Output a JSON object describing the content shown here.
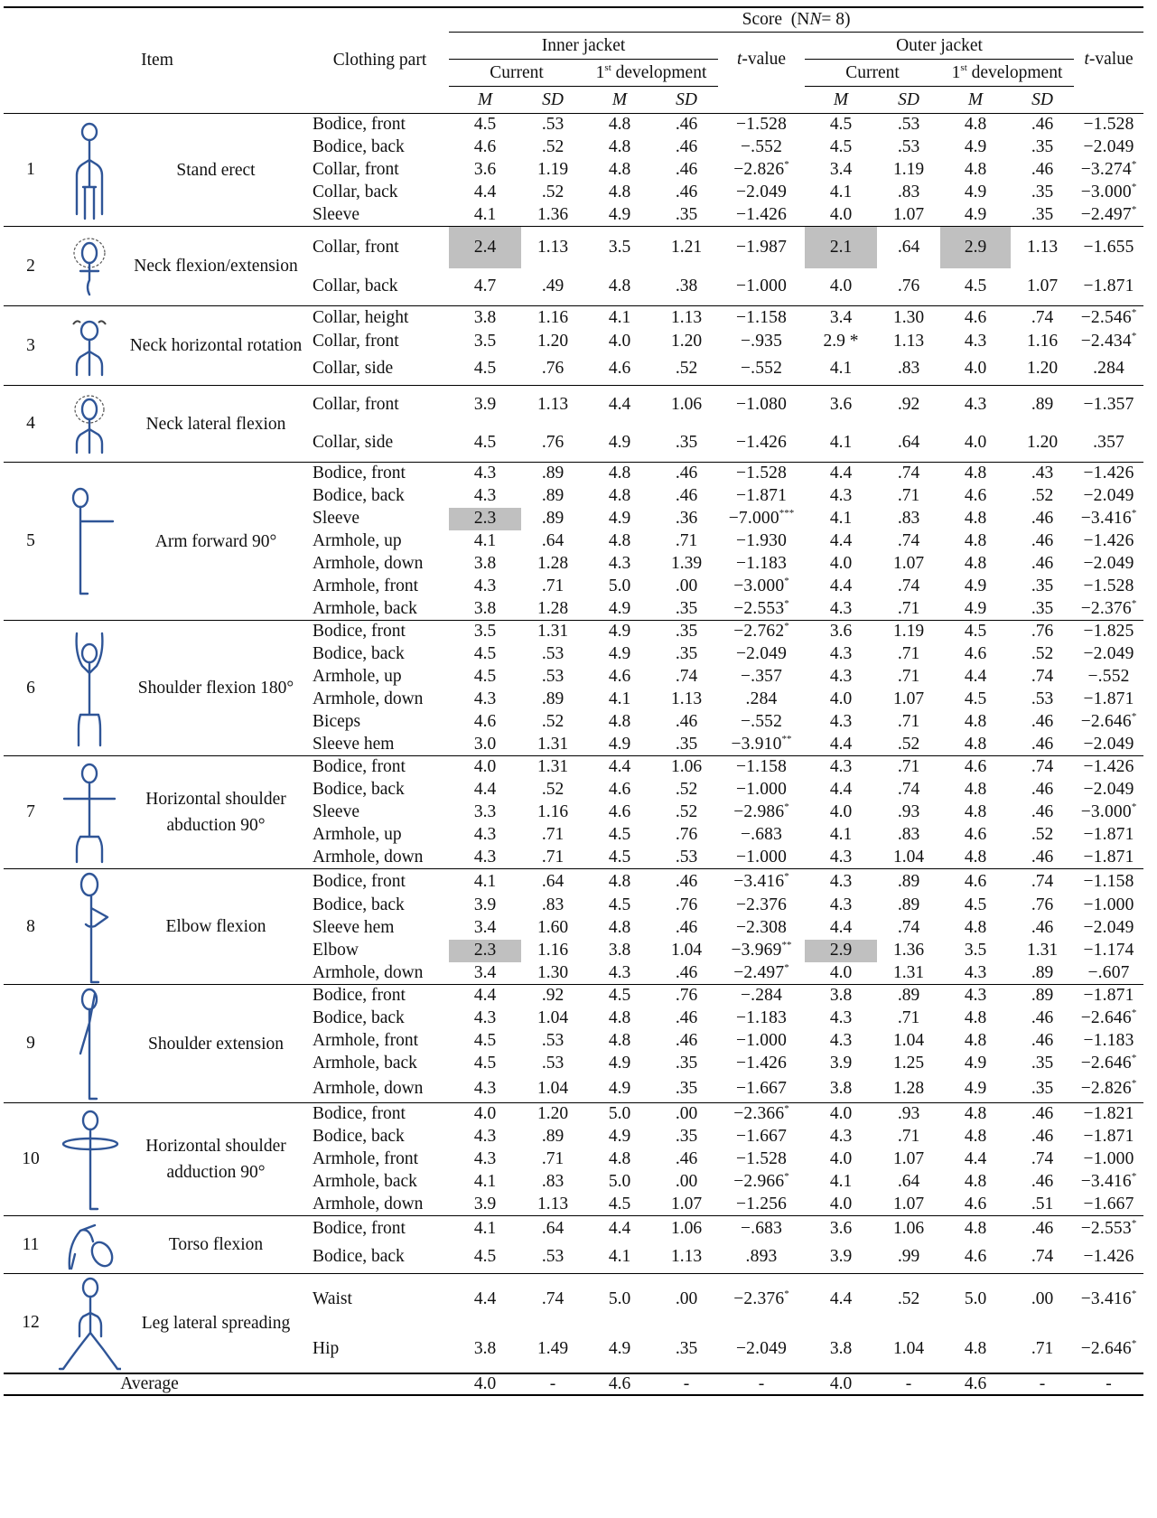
{
  "header": {
    "item": "Item",
    "clothing_part": "Clothing part",
    "score": "Score",
    "n_label": "(N",
    "n_value": "= 8)",
    "inner": "Inner jacket",
    "outer": "Outer jacket",
    "current": "Current",
    "development_ordinal": "1",
    "development_sup": "st",
    "development": " development",
    "tvalue_t": "t",
    "tvalue_rest": "-value",
    "m": "M",
    "sd": "SD"
  },
  "groups": [
    {
      "no": "1",
      "name": "Stand erect",
      "icon": "stand-erect-figure-icon",
      "rows": [
        {
          "part": "Bodice,  front",
          "c": [
            "4.5",
            ".53",
            "4.8",
            ".46",
            "−1.528",
            "",
            "4.5",
            ".53",
            "4.8",
            ".46",
            "−1.528",
            ""
          ]
        },
        {
          "part": "Bodice,  back",
          "c": [
            "4.6",
            ".52",
            "4.8",
            ".46",
            "−.552",
            "",
            "4.5",
            ".53",
            "4.9",
            ".35",
            "−2.049",
            ""
          ]
        },
        {
          "part": "Collar,  front",
          "c": [
            "3.6",
            "1.19",
            "4.8",
            ".46",
            "−2.826",
            "*",
            "3.4",
            "1.19",
            "4.8",
            ".46",
            "−3.274",
            "*"
          ]
        },
        {
          "part": "Collar,  back",
          "c": [
            "4.4",
            ".52",
            "4.8",
            ".46",
            "−2.049",
            "",
            "4.1",
            ".83",
            "4.9",
            ".35",
            "−3.000",
            "*"
          ]
        },
        {
          "part": "Sleeve",
          "c": [
            "4.1",
            "1.36",
            "4.9",
            ".35",
            "−1.426",
            "",
            "4.0",
            "1.07",
            "4.9",
            ".35",
            "−2.497",
            "*"
          ]
        }
      ]
    },
    {
      "no": "2",
      "name": "Neck flexion/extension",
      "icon": "neck-flexion-extension-figure-icon",
      "rows": [
        {
          "part": "Collar,  front",
          "c": [
            "2.4",
            "1.13",
            "3.5",
            "1.21",
            "−1.987",
            "",
            "2.1",
            ".64",
            "2.9",
            "1.13",
            "−1.655",
            ""
          ],
          "shade": [
            0,
            6,
            8
          ]
        },
        {
          "part": "Collar,  back",
          "c": [
            "4.7",
            ".49",
            "4.8",
            ".38",
            "−1.000",
            "",
            "4.0",
            ".76",
            "4.5",
            "1.07",
            "−1.871",
            ""
          ]
        }
      ]
    },
    {
      "no": "3",
      "name": "Neck horizontal rotation",
      "icon": "neck-horizontal-rotation-figure-icon",
      "rows": [
        {
          "part": "Collar,  height",
          "c": [
            "3.8",
            "1.16",
            "4.1",
            "1.13",
            "−1.158",
            "",
            "3.4",
            "1.30",
            "4.6",
            ".74",
            "−2.546",
            "*"
          ]
        },
        {
          "part": "Collar,  front",
          "c": [
            "3.5",
            "1.20",
            "4.0",
            "1.20",
            "−.935",
            "",
            "2.9 *",
            "1.13",
            "4.3",
            "1.16",
            "−2.434",
            "*"
          ]
        },
        {
          "part": "Collar,  side",
          "c": [
            "4.5",
            ".76",
            "4.6",
            ".52",
            "−.552",
            "",
            "4.1",
            ".83",
            "4.0",
            "1.20",
            ".284",
            ""
          ]
        }
      ]
    },
    {
      "no": "4",
      "name": "Neck lateral flexion",
      "icon": "neck-lateral-flexion-figure-icon",
      "rows": [
        {
          "part": "Collar,  front",
          "c": [
            "3.9",
            "1.13",
            "4.4",
            "1.06",
            "−1.080",
            "",
            "3.6",
            ".92",
            "4.3",
            ".89",
            "−1.357",
            ""
          ]
        },
        {
          "part": "Collar,  side",
          "c": [
            "4.5",
            ".76",
            "4.9",
            ".35",
            "−1.426",
            "",
            "4.1",
            ".64",
            "4.0",
            "1.20",
            ".357",
            ""
          ]
        }
      ]
    },
    {
      "no": "5",
      "name": "Arm forward 90°",
      "icon": "arm-forward-figure-icon",
      "rows": [
        {
          "part": "Bodice,  front",
          "c": [
            "4.3",
            ".89",
            "4.8",
            ".46",
            "−1.528",
            "",
            "4.4",
            ".74",
            "4.8",
            ".43",
            "−1.426",
            ""
          ]
        },
        {
          "part": "Bodice,  back",
          "c": [
            "4.3",
            ".89",
            "4.8",
            ".46",
            "−1.871",
            "",
            "4.3",
            ".71",
            "4.6",
            ".52",
            "−2.049",
            ""
          ]
        },
        {
          "part": "Sleeve",
          "c": [
            "2.3",
            ".89",
            "4.9",
            ".36",
            "−7.000",
            "***",
            "4.1",
            ".83",
            "4.8",
            ".46",
            "−3.416",
            "*"
          ],
          "shade": [
            0
          ]
        },
        {
          "part": "Armhole,  up",
          "c": [
            "4.1",
            ".64",
            "4.8",
            ".71",
            "−1.930",
            "",
            "4.4",
            ".74",
            "4.8",
            ".46",
            "−1.426",
            ""
          ]
        },
        {
          "part": "Armhole,  down",
          "c": [
            "3.8",
            "1.28",
            "4.3",
            "1.39",
            "−1.183",
            "",
            "4.0",
            "1.07",
            "4.8",
            ".46",
            "−2.049",
            ""
          ]
        },
        {
          "part": "Armhole,  front",
          "c": [
            "4.3",
            ".71",
            "5.0",
            ".00",
            "−3.000",
            "*",
            "4.4",
            ".74",
            "4.9",
            ".35",
            "−1.528",
            ""
          ]
        },
        {
          "part": "Armhole,  back",
          "c": [
            "3.8",
            "1.28",
            "4.9",
            ".35",
            "−2.553",
            "*",
            "4.3",
            ".71",
            "4.9",
            ".35",
            "−2.376",
            "*"
          ]
        }
      ]
    },
    {
      "no": "6",
      "name": "Shoulder flexion 180°",
      "icon": "shoulder-flexion-figure-icon",
      "rows": [
        {
          "part": "Bodice,  front",
          "c": [
            "3.5",
            "1.31",
            "4.9",
            ".35",
            "−2.762",
            "*",
            "3.6",
            "1.19",
            "4.5",
            ".76",
            "−1.825",
            ""
          ]
        },
        {
          "part": "Bodice,  back",
          "c": [
            "4.5",
            ".53",
            "4.9",
            ".35",
            "−2.049",
            "",
            "4.3",
            ".71",
            "4.6",
            ".52",
            "−2.049",
            ""
          ]
        },
        {
          "part": "Armhole,  up",
          "c": [
            "4.5",
            ".53",
            "4.6",
            ".74",
            "−.357",
            "",
            "4.3",
            ".71",
            "4.4",
            ".74",
            "−.552",
            ""
          ]
        },
        {
          "part": "Armhole,  down",
          "c": [
            "4.3",
            ".89",
            "4.1",
            "1.13",
            ".284",
            "",
            "4.0",
            "1.07",
            "4.5",
            ".53",
            "−1.871",
            ""
          ]
        },
        {
          "part": "Biceps",
          "c": [
            "4.6",
            ".52",
            "4.8",
            ".46",
            "−.552",
            "",
            "4.3",
            ".71",
            "4.8",
            ".46",
            "−2.646",
            "*"
          ]
        },
        {
          "part": "Sleeve  hem",
          "c": [
            "3.0",
            "1.31",
            "4.9",
            ".35",
            "−3.910",
            "**",
            "4.4",
            ".52",
            "4.8",
            ".46",
            "−2.049",
            ""
          ]
        }
      ]
    },
    {
      "no": "7",
      "name": "Horizontal shoulder abduction 90°",
      "icon": "horizontal-shoulder-abduction-figure-icon",
      "rows": [
        {
          "part": "Bodice,  front",
          "c": [
            "4.0",
            "1.31",
            "4.4",
            "1.06",
            "−1.158",
            "",
            "4.3",
            ".71",
            "4.6",
            ".74",
            "−1.426",
            ""
          ]
        },
        {
          "part": "Bodice,  back",
          "c": [
            "4.4",
            ".52",
            "4.6",
            ".52",
            "−1.000",
            "",
            "4.4",
            ".74",
            "4.8",
            ".46",
            "−2.049",
            ""
          ]
        },
        {
          "part": "Sleeve",
          "c": [
            "3.3",
            "1.16",
            "4.6",
            ".52",
            "−2.986",
            "*",
            "4.0",
            ".93",
            "4.8",
            ".46",
            "−3.000",
            "*"
          ]
        },
        {
          "part": "Armhole,  up",
          "c": [
            "4.3",
            ".71",
            "4.5",
            ".76",
            "−.683",
            "",
            "4.1",
            ".83",
            "4.6",
            ".52",
            "−1.871",
            ""
          ]
        },
        {
          "part": "Armhole,  down",
          "c": [
            "4.3",
            ".71",
            "4.5",
            ".53",
            "−1.000",
            "",
            "4.3",
            "1.04",
            "4.8",
            ".46",
            "−1.871",
            ""
          ]
        }
      ]
    },
    {
      "no": "8",
      "name": "Elbow flexion",
      "icon": "elbow-flexion-figure-icon",
      "rows": [
        {
          "part": "Bodice,  front",
          "c": [
            "4.1",
            ".64",
            "4.8",
            ".46",
            "−3.416",
            "*",
            "4.3",
            ".89",
            "4.6",
            ".74",
            "−1.158",
            ""
          ]
        },
        {
          "part": "Bodice,  back",
          "c": [
            "3.9",
            ".83",
            "4.5",
            ".76",
            "−2.376",
            "",
            "4.3",
            ".89",
            "4.5",
            ".76",
            "−1.000",
            ""
          ]
        },
        {
          "part": "Sleeve  hem",
          "c": [
            "3.4",
            "1.60",
            "4.8",
            ".46",
            "−2.308",
            "",
            "4.4",
            ".74",
            "4.8",
            ".46",
            "−2.049",
            ""
          ]
        },
        {
          "part": "Elbow",
          "c": [
            "2.3",
            "1.16",
            "3.8",
            "1.04",
            "−3.969",
            "**",
            "2.9",
            "1.36",
            "3.5",
            "1.31",
            "−1.174",
            ""
          ],
          "shade": [
            0,
            6
          ]
        },
        {
          "part": "Armhole,  down",
          "c": [
            "3.4",
            "1.30",
            "4.3",
            ".46",
            "−2.497",
            "*",
            "4.0",
            "1.31",
            "4.3",
            ".89",
            "−.607",
            ""
          ]
        }
      ]
    },
    {
      "no": "9",
      "name": "Shoulder extension",
      "icon": "shoulder-extension-figure-icon",
      "rows": [
        {
          "part": "Bodice,  front",
          "c": [
            "4.4",
            ".92",
            "4.5",
            ".76",
            "−.284",
            "",
            "3.8",
            ".89",
            "4.3",
            ".89",
            "−1.871",
            ""
          ]
        },
        {
          "part": "Bodice,  back",
          "c": [
            "4.3",
            "1.04",
            "4.8",
            ".46",
            "−1.183",
            "",
            "4.3",
            ".71",
            "4.8",
            ".46",
            "−2.646",
            "*"
          ]
        },
        {
          "part": "Armhole,  front",
          "c": [
            "4.5",
            ".53",
            "4.8",
            ".46",
            "−1.000",
            "",
            "4.3",
            "1.04",
            "4.8",
            ".46",
            "−1.183",
            ""
          ]
        },
        {
          "part": "Armhole,  back",
          "c": [
            "4.5",
            ".53",
            "4.9",
            ".35",
            "−1.426",
            "",
            "3.9",
            "1.25",
            "4.9",
            ".35",
            "−2.646",
            "*"
          ]
        },
        {
          "part": "Armhole,  down",
          "c": [
            "4.3",
            "1.04",
            "4.9",
            ".35",
            "−1.667",
            "",
            "3.8",
            "1.28",
            "4.9",
            ".35",
            "−2.826",
            "*"
          ]
        }
      ]
    },
    {
      "no": "10",
      "name": "Horizontal shoulder adduction 90°",
      "icon": "horizontal-shoulder-adduction-figure-icon",
      "rows": [
        {
          "part": "Bodice,  front",
          "c": [
            "4.0",
            "1.20",
            "5.0",
            ".00",
            "−2.366",
            "*",
            "4.0",
            ".93",
            "4.8",
            ".46",
            "−1.821",
            ""
          ]
        },
        {
          "part": "Bodice,  back",
          "c": [
            "4.3",
            ".89",
            "4.9",
            ".35",
            "−1.667",
            "",
            "4.3",
            ".71",
            "4.8",
            ".46",
            "−1.871",
            ""
          ]
        },
        {
          "part": "Armhole,  front",
          "c": [
            "4.3",
            ".71",
            "4.8",
            ".46",
            "−1.528",
            "",
            "4.0",
            "1.07",
            "4.4",
            ".74",
            "−1.000",
            ""
          ]
        },
        {
          "part": "Armhole,  back",
          "c": [
            "4.1",
            ".83",
            "5.0",
            ".00",
            "−2.966",
            "*",
            "4.1",
            ".64",
            "4.8",
            ".46",
            "−3.416",
            "*"
          ]
        },
        {
          "part": "Armhole,  down",
          "c": [
            "3.9",
            "1.13",
            "4.5",
            "1.07",
            "−1.256",
            "",
            "4.0",
            "1.07",
            "4.6",
            ".51",
            "−1.667",
            ""
          ]
        }
      ]
    },
    {
      "no": "11",
      "name": "Torso flexion",
      "icon": "torso-flexion-figure-icon",
      "rows": [
        {
          "part": "Bodice,  front",
          "c": [
            "4.1",
            ".64",
            "4.4",
            "1.06",
            "−.683",
            "",
            "3.6",
            "1.06",
            "4.8",
            ".46",
            "−2.553",
            "*"
          ]
        },
        {
          "part": "Bodice,  back",
          "c": [
            "4.5",
            ".53",
            "4.1",
            "1.13",
            ".893",
            "",
            "3.9",
            ".99",
            "4.6",
            ".74",
            "−1.426",
            ""
          ]
        }
      ]
    },
    {
      "no": "12",
      "name": "Leg lateral spreading",
      "icon": "leg-lateral-spreading-figure-icon",
      "rows": [
        {
          "part": "Waist",
          "c": [
            "4.4",
            ".74",
            "5.0",
            ".00",
            "−2.376",
            "*",
            "4.4",
            ".52",
            "5.0",
            ".00",
            "−3.416",
            "*"
          ]
        },
        {
          "part": "Hip",
          "c": [
            "3.8",
            "1.49",
            "4.9",
            ".35",
            "−2.049",
            "",
            "3.8",
            "1.04",
            "4.8",
            ".71",
            "−2.646",
            "*"
          ]
        }
      ]
    }
  ],
  "average": {
    "label": "Average",
    "c": [
      "4.0",
      "-",
      "4.6",
      "-",
      "-",
      "4.0",
      "-",
      "4.6",
      "-",
      "-"
    ]
  }
}
